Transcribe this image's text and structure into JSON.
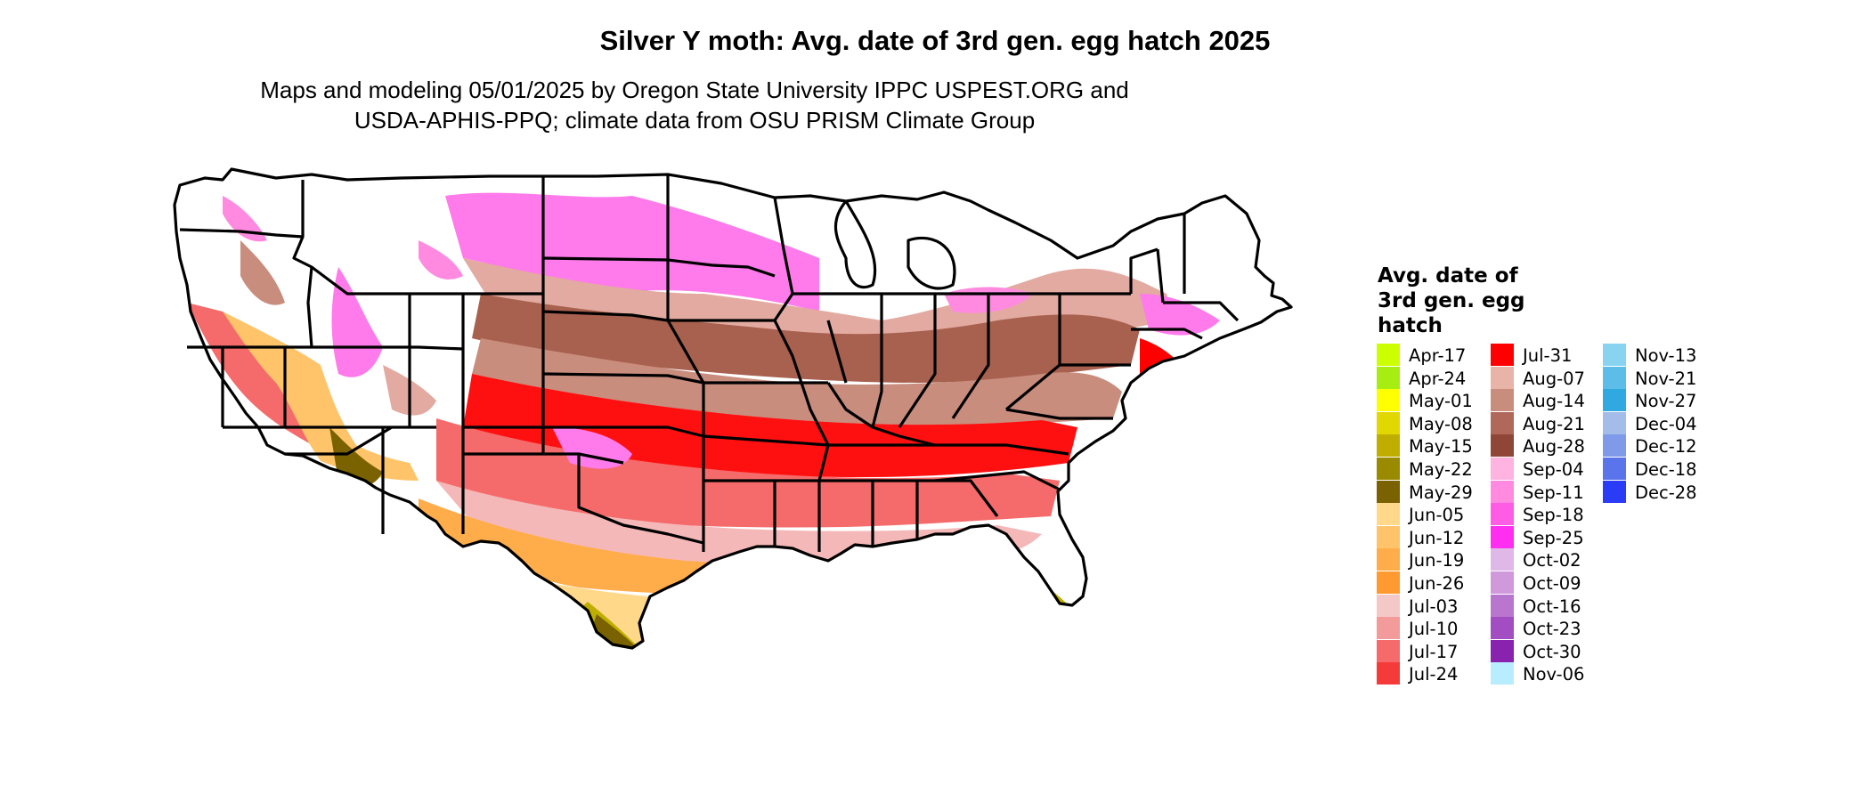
{
  "title": "Silver Y moth: Avg. date of 3rd gen. egg hatch 2025",
  "subtitle_line1": "Maps and modeling 05/01/2025 by Oregon State University IPPC USPEST.ORG and",
  "subtitle_line2": "USDA-APHIS-PPQ; climate data from OSU PRISM Climate Group",
  "legend": {
    "title_line1": "Avg. date of",
    "title_line2": "3rd gen. egg",
    "title_line3": "hatch",
    "items": [
      {
        "label": "Apr-17",
        "color": "#ccff00"
      },
      {
        "label": "Apr-24",
        "color": "#a6ee11"
      },
      {
        "label": "May-01",
        "color": "#ffff00"
      },
      {
        "label": "May-08",
        "color": "#e0d800"
      },
      {
        "label": "May-15",
        "color": "#bfae00"
      },
      {
        "label": "May-22",
        "color": "#9a8a00"
      },
      {
        "label": "May-29",
        "color": "#7a6200"
      },
      {
        "label": "Jun-05",
        "color": "#ffd88a"
      },
      {
        "label": "Jun-12",
        "color": "#ffc46a"
      },
      {
        "label": "Jun-19",
        "color": "#ffad4a"
      },
      {
        "label": "Jun-26",
        "color": "#ff9a30"
      },
      {
        "label": "Jul-03",
        "color": "#f5c8c8"
      },
      {
        "label": "Jul-10",
        "color": "#f39a9a"
      },
      {
        "label": "Jul-17",
        "color": "#f56a6a"
      },
      {
        "label": "Jul-24",
        "color": "#f53a3a"
      },
      {
        "label": "Jul-31",
        "color": "#ff0000"
      },
      {
        "label": "Aug-07",
        "color": "#e8b4a8"
      },
      {
        "label": "Aug-14",
        "color": "#c98d7e"
      },
      {
        "label": "Aug-21",
        "color": "#b0685a"
      },
      {
        "label": "Aug-28",
        "color": "#8f4636"
      },
      {
        "label": "Sep-04",
        "color": "#ffb3e0"
      },
      {
        "label": "Sep-11",
        "color": "#ff8ae0"
      },
      {
        "label": "Sep-18",
        "color": "#ff5ce6"
      },
      {
        "label": "Sep-25",
        "color": "#ff2ef0"
      },
      {
        "label": "Oct-02",
        "color": "#e0b8e8"
      },
      {
        "label": "Oct-09",
        "color": "#cf99dc"
      },
      {
        "label": "Oct-16",
        "color": "#b976cf"
      },
      {
        "label": "Oct-23",
        "color": "#a24dc2"
      },
      {
        "label": "Oct-30",
        "color": "#8a22b0"
      },
      {
        "label": "Nov-06",
        "color": "#b8ecff"
      },
      {
        "label": "Nov-13",
        "color": "#88d4f0"
      },
      {
        "label": "Nov-21",
        "color": "#5cbde8"
      },
      {
        "label": "Nov-27",
        "color": "#30a8e0"
      },
      {
        "label": "Dec-04",
        "color": "#a3bde8"
      },
      {
        "label": "Dec-12",
        "color": "#7f9ae8"
      },
      {
        "label": "Dec-18",
        "color": "#5a74ec"
      },
      {
        "label": "Dec-28",
        "color": "#2a3cf5"
      }
    ]
  }
}
